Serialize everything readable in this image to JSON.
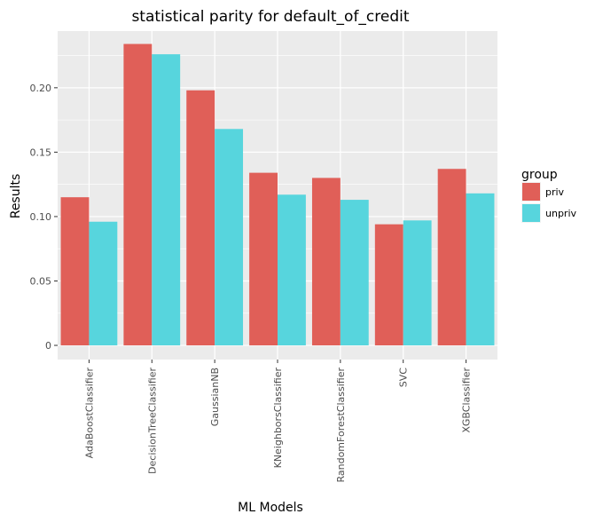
{
  "chart_data": {
    "type": "bar",
    "title": "statistical parity for default_of_credit",
    "xlabel": "ML Models",
    "ylabel": "Results",
    "categories": [
      "AdaBoostClassifier",
      "DecisionTreeClassifier",
      "GaussianNB",
      "KNeighborsClassifier",
      "RandomForestClassifier",
      "SVC",
      "XGBClassifier"
    ],
    "series": [
      {
        "name": "priv",
        "color": "#E05F58",
        "values": [
          0.115,
          0.234,
          0.198,
          0.134,
          0.13,
          0.094,
          0.137
        ]
      },
      {
        "name": "unpriv",
        "color": "#57D5DD",
        "values": [
          0.096,
          0.226,
          0.168,
          0.117,
          0.113,
          0.097,
          0.118
        ]
      }
    ],
    "ylim": [
      -0.011,
      0.244
    ],
    "yticks": [
      0,
      0.05,
      0.1,
      0.15,
      0.2
    ],
    "ytick_labels": [
      "0",
      "0.05",
      "0.10",
      "0.15",
      "0.20"
    ],
    "legend_title": "group",
    "legend_position": "right",
    "grid": true,
    "panel_color": "#EBEBEB"
  }
}
